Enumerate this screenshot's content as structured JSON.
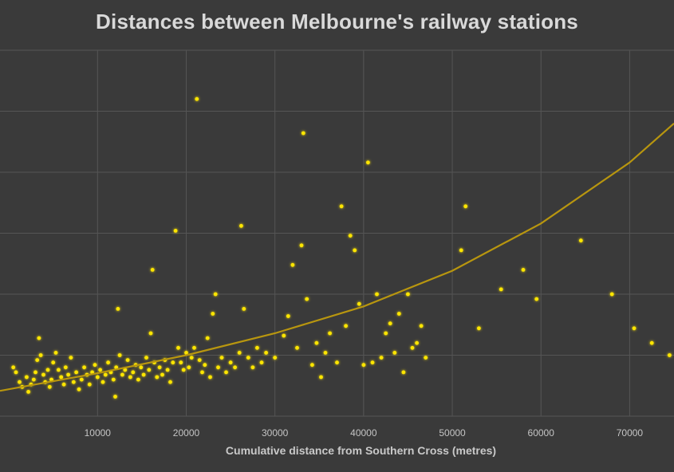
{
  "chart_data": {
    "type": "scatter",
    "title": "Distances between Melbourne's railway stations",
    "xlabel": "Cumulative distance from Southern Cross (metres)",
    "ylabel": "",
    "xlim": [
      -1000,
      75000
    ],
    "x_ticks": [
      10000,
      20000,
      30000,
      40000,
      50000,
      60000,
      70000
    ],
    "grid": true,
    "legend": "none",
    "colors": {
      "background": "#3a3a3a",
      "point": "#ffe600",
      "trend": "#b8960f",
      "grid": "#555555",
      "text": "#d9d9d9"
    },
    "trendline": {
      "type": "exponential",
      "x": [
        -1000,
        10000,
        20000,
        30000,
        40000,
        50000,
        60000,
        70000,
        75000
      ],
      "y": [
        520,
        880,
        1250,
        1700,
        2250,
        2980,
        3950,
        5200,
        6000
      ]
    },
    "series": [
      {
        "values": [
          [
            500,
            1000
          ],
          [
            800,
            900
          ],
          [
            1200,
            700
          ],
          [
            1500,
            600
          ],
          [
            2000,
            800
          ],
          [
            2200,
            500
          ],
          [
            2500,
            650
          ],
          [
            2800,
            750
          ],
          [
            3000,
            900
          ],
          [
            3200,
            1150
          ],
          [
            3400,
            1600
          ],
          [
            3600,
            1250
          ],
          [
            3900,
            850
          ],
          [
            4100,
            700
          ],
          [
            4400,
            950
          ],
          [
            4600,
            600
          ],
          [
            4800,
            750
          ],
          [
            5000,
            1100
          ],
          [
            5300,
            1300
          ],
          [
            5600,
            950
          ],
          [
            5900,
            800
          ],
          [
            6200,
            650
          ],
          [
            6400,
            1000
          ],
          [
            6700,
            850
          ],
          [
            7000,
            1200
          ],
          [
            7300,
            700
          ],
          [
            7600,
            900
          ],
          [
            7900,
            550
          ],
          [
            8200,
            750
          ],
          [
            8500,
            1000
          ],
          [
            8800,
            850
          ],
          [
            9100,
            650
          ],
          [
            9400,
            900
          ],
          [
            9700,
            1050
          ],
          [
            10000,
            800
          ],
          [
            10300,
            950
          ],
          [
            10600,
            700
          ],
          [
            10900,
            850
          ],
          [
            11200,
            1100
          ],
          [
            11500,
            900
          ],
          [
            11800,
            750
          ],
          [
            12000,
            400
          ],
          [
            12100,
            1000
          ],
          [
            12300,
            2200
          ],
          [
            12500,
            1250
          ],
          [
            12800,
            850
          ],
          [
            13100,
            950
          ],
          [
            13400,
            1150
          ],
          [
            13700,
            800
          ],
          [
            14000,
            900
          ],
          [
            14300,
            1050
          ],
          [
            14600,
            750
          ],
          [
            14900,
            1000
          ],
          [
            15200,
            850
          ],
          [
            15500,
            1200
          ],
          [
            15800,
            950
          ],
          [
            16000,
            1700
          ],
          [
            16200,
            3000
          ],
          [
            16400,
            1100
          ],
          [
            16700,
            800
          ],
          [
            17000,
            1000
          ],
          [
            17300,
            850
          ],
          [
            17600,
            1150
          ],
          [
            17900,
            950
          ],
          [
            18200,
            700
          ],
          [
            18500,
            1100
          ],
          [
            18800,
            3800
          ],
          [
            19100,
            1400
          ],
          [
            19400,
            1100
          ],
          [
            19700,
            950
          ],
          [
            20000,
            1300
          ],
          [
            20300,
            1000
          ],
          [
            20600,
            1200
          ],
          [
            20900,
            1400
          ],
          [
            21200,
            6500
          ],
          [
            21500,
            1150
          ],
          [
            21800,
            900
          ],
          [
            22100,
            1050
          ],
          [
            22400,
            1600
          ],
          [
            22700,
            800
          ],
          [
            23000,
            2100
          ],
          [
            23300,
            2500
          ],
          [
            23600,
            1000
          ],
          [
            24000,
            1200
          ],
          [
            24500,
            900
          ],
          [
            25000,
            1100
          ],
          [
            25500,
            1000
          ],
          [
            26000,
            1300
          ],
          [
            26200,
            3900
          ],
          [
            26500,
            2200
          ],
          [
            27000,
            1200
          ],
          [
            27500,
            1000
          ],
          [
            28000,
            1400
          ],
          [
            28500,
            1100
          ],
          [
            29000,
            1300
          ],
          [
            30000,
            1200
          ],
          [
            31000,
            1650
          ],
          [
            31500,
            2050
          ],
          [
            32000,
            3100
          ],
          [
            32500,
            1400
          ],
          [
            33000,
            3500
          ],
          [
            33200,
            5800
          ],
          [
            33600,
            2400
          ],
          [
            34200,
            1050
          ],
          [
            34700,
            1500
          ],
          [
            35200,
            800
          ],
          [
            35700,
            1300
          ],
          [
            36200,
            1700
          ],
          [
            37000,
            1100
          ],
          [
            37500,
            4300
          ],
          [
            38000,
            1850
          ],
          [
            38500,
            3700
          ],
          [
            39000,
            3400
          ],
          [
            39500,
            2300
          ],
          [
            40000,
            1050
          ],
          [
            40500,
            5200
          ],
          [
            41000,
            1100
          ],
          [
            41500,
            2500
          ],
          [
            42000,
            1200
          ],
          [
            42500,
            1700
          ],
          [
            43000,
            1900
          ],
          [
            43500,
            1300
          ],
          [
            44000,
            2100
          ],
          [
            44500,
            900
          ],
          [
            45000,
            2500
          ],
          [
            45500,
            1400
          ],
          [
            46000,
            1500
          ],
          [
            46500,
            1850
          ],
          [
            47000,
            1200
          ],
          [
            51000,
            3400
          ],
          [
            51500,
            4300
          ],
          [
            53000,
            1800
          ],
          [
            55500,
            2600
          ],
          [
            58000,
            3000
          ],
          [
            59500,
            2400
          ],
          [
            64500,
            3600
          ],
          [
            68000,
            2500
          ],
          [
            70500,
            1800
          ],
          [
            72500,
            1500
          ],
          [
            74500,
            1250
          ]
        ]
      }
    ]
  }
}
